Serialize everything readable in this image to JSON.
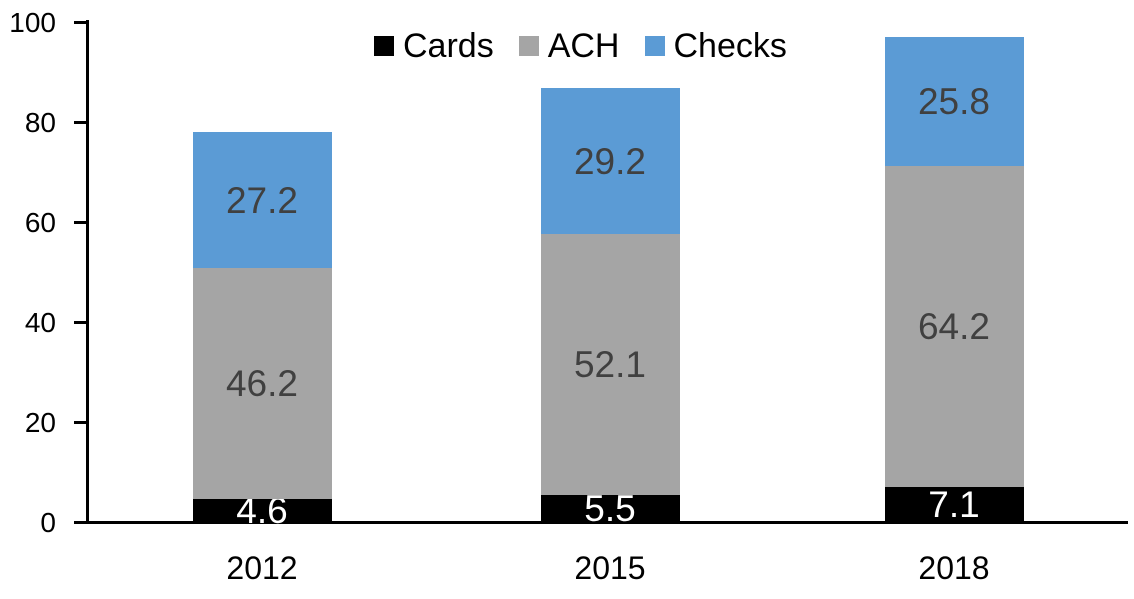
{
  "chart_data": {
    "type": "bar",
    "stacked": true,
    "title": "",
    "xlabel": "",
    "ylabel": "",
    "categories": [
      "2012",
      "2015",
      "2018"
    ],
    "series": [
      {
        "name": "Cards",
        "values": [
          4.6,
          5.5,
          7.1
        ],
        "color": "#000000",
        "label_color": "#ffffff"
      },
      {
        "name": "ACH",
        "values": [
          46.2,
          52.1,
          64.2
        ],
        "color": "#a5a5a5",
        "label_color": "#404040"
      },
      {
        "name": "Checks",
        "values": [
          27.2,
          29.2,
          25.8
        ],
        "color": "#5b9bd5",
        "label_color": "#404040"
      }
    ],
    "y_ticks": [
      0,
      20,
      40,
      60,
      80,
      100
    ],
    "ylim": [
      0,
      100
    ],
    "grid": false,
    "legend_position": "top-center",
    "axis_color": "#000000",
    "background_color": "#ffffff"
  }
}
